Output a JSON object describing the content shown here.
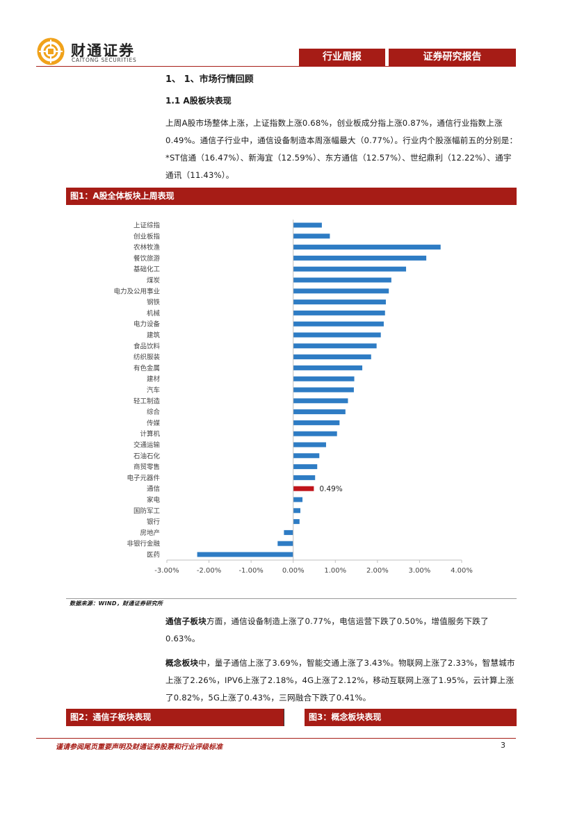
{
  "header": {
    "logo_cn": "财通证券",
    "logo_en": "CAITONG SECURITIES",
    "tab_weekly": "行业周报",
    "tab_report": "证券研究报告",
    "brand_color": "#a61c16"
  },
  "section": {
    "heading": "1、 1、市场行情回顾",
    "subheading": "1.1  A股板块表现",
    "paragraph_1": "上周A股市场整体上涨，上证指数上涨0.68%，创业板成分指上涨0.87%，通信行业指数上涨0.49%。通信子行业中，通信设备制造本周涨幅最大（0.77%）。行业内个股涨幅前五的分别是：*ST信通（16.47%）、新海宜（12.59%）、东方通信（12.57%）、世纪鼎利（12.22%）、通宇通讯（11.43%）。"
  },
  "figure1": {
    "title": "图1：A股全体板块上周表现",
    "source": "数据来源：WIND，财通证券研究所"
  },
  "chart_data": {
    "type": "bar",
    "orientation": "horizontal",
    "title": "",
    "xlabel": "",
    "ylabel": "",
    "xlim": [
      -3.0,
      4.0
    ],
    "x_ticks": [
      "-3.00%",
      "-2.00%",
      "-1.00%",
      "0.00%",
      "1.00%",
      "2.00%",
      "3.00%",
      "4.00%"
    ],
    "categories": [
      "上证综指",
      "创业板指",
      "农林牧渔",
      "餐饮旅游",
      "基础化工",
      "煤炭",
      "电力及公用事业",
      "钢铁",
      "机械",
      "电力设备",
      "建筑",
      "食品饮料",
      "纺织服装",
      "有色金属",
      "建材",
      "汽车",
      "轻工制造",
      "综合",
      "传媒",
      "计算机",
      "交通运输",
      "石油石化",
      "商贸零售",
      "电子元器件",
      "通信",
      "家电",
      "国防军工",
      "银行",
      "房地产",
      "非银行金融",
      "医药"
    ],
    "values": [
      0.68,
      0.87,
      3.5,
      3.16,
      2.68,
      2.33,
      2.27,
      2.2,
      2.18,
      2.15,
      2.08,
      1.98,
      1.85,
      1.64,
      1.45,
      1.44,
      1.3,
      1.24,
      1.1,
      1.04,
      0.78,
      0.62,
      0.57,
      0.52,
      0.49,
      0.22,
      0.17,
      0.15,
      -0.22,
      -0.37,
      -2.28
    ],
    "highlight_index": 24,
    "highlight_label": "0.49%",
    "bar_color": "#2e7cc4",
    "highlight_color": "#c0141b",
    "grid": false
  },
  "sub_sections": {
    "telecom_label": "通信子板块",
    "telecom_text": "方面，通信设备制造上涨了0.77%，电信运营下跌了0.50%，增值服务下跌了0.63%。",
    "concept_label": "概念板块",
    "concept_text": "中，量子通信上涨了3.69%，智能交通上涨了3.43%。物联网上涨了2.33%，智慧城市上涨了2.26%，IPV6上涨了2.18%，4G上涨了2.12%，移动互联网上涨了1.95%，云计算上涨了0.82%，5G上涨了0.43%，三网融合下跌了0.41%。"
  },
  "figure2": {
    "title": "图2：通信子板块表现"
  },
  "figure3": {
    "title": "图3：概念板块表现"
  },
  "footer": {
    "disclaimer": "谨请参阅尾页重要声明及财通证券股票和行业评级标准",
    "page_number": "3"
  }
}
